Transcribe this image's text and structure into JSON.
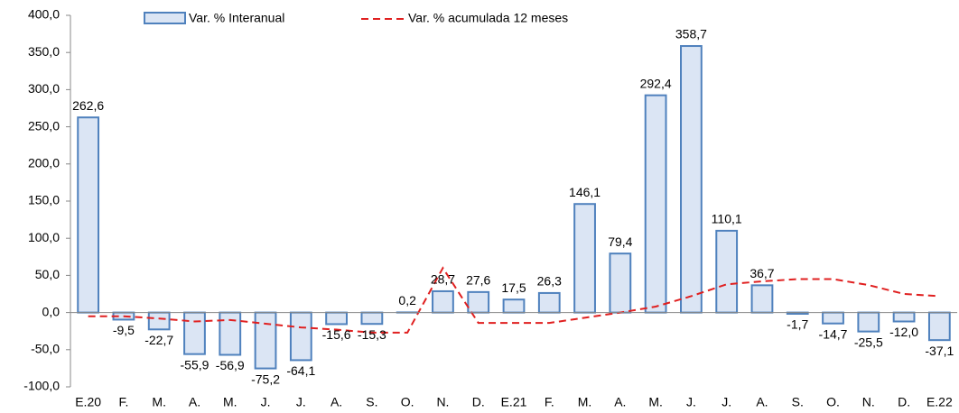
{
  "chart_data": {
    "type": "bar",
    "categories": [
      "E.20",
      "F.",
      "M.",
      "A.",
      "M.",
      "J.",
      "J.",
      "A.",
      "S.",
      "O.",
      "N.",
      "D.",
      "E.21",
      "F.",
      "M.",
      "A.",
      "M.",
      "J.",
      "J.",
      "A.",
      "S.",
      "O.",
      "N.",
      "D.",
      "E.22"
    ],
    "series": [
      {
        "name": "Var. % Interanual",
        "type": "bar",
        "color": "#4f81bd",
        "fill": "#dbe5f4",
        "values": [
          262.6,
          -9.5,
          -22.7,
          -55.9,
          -56.9,
          -75.2,
          -64.1,
          -15.6,
          -15.3,
          0.2,
          28.7,
          27.6,
          17.5,
          26.3,
          146.1,
          79.4,
          292.4,
          358.7,
          110.1,
          36.7,
          -1.7,
          -14.7,
          -25.5,
          -12.0,
          -37.1
        ],
        "value_labels": [
          "262,6",
          "-9,5",
          "-22,7",
          "-55,9",
          "-56,9",
          "-75,2",
          "-64,1",
          "-15,6",
          "-15,3",
          "0,2",
          "28,7",
          "27,6",
          "17,5",
          "26,3",
          "146,1",
          "79,4",
          "292,4",
          "358,7",
          "110,1",
          "36,7",
          "-1,7",
          "-14,7",
          "-25,5",
          "-12,0",
          "-37,1"
        ]
      },
      {
        "name": "Var. % acumulada 12 meses",
        "type": "line",
        "color": "#e02020",
        "dashed": true,
        "values": [
          -5,
          -5,
          -8,
          -12,
          -10,
          -15,
          -20,
          -23,
          -27,
          -27,
          60,
          -14,
          -14,
          -14,
          -7,
          0,
          8,
          22,
          38,
          42,
          45,
          45,
          37,
          25,
          22
        ]
      }
    ],
    "ylim": [
      -100,
      400
    ],
    "yticks": [
      {
        "value": -100,
        "label": "-100,0"
      },
      {
        "value": -50,
        "label": "-50,0"
      },
      {
        "value": 0,
        "label": "0,0"
      },
      {
        "value": 50,
        "label": "50,0"
      },
      {
        "value": 100,
        "label": "100,0"
      },
      {
        "value": 150,
        "label": "150,0"
      },
      {
        "value": 200,
        "label": "200,0"
      },
      {
        "value": 250,
        "label": "250,0"
      },
      {
        "value": 300,
        "label": "300,0"
      },
      {
        "value": 350,
        "label": "350,0"
      },
      {
        "value": 400,
        "label": "400,0"
      }
    ],
    "grid": false
  }
}
